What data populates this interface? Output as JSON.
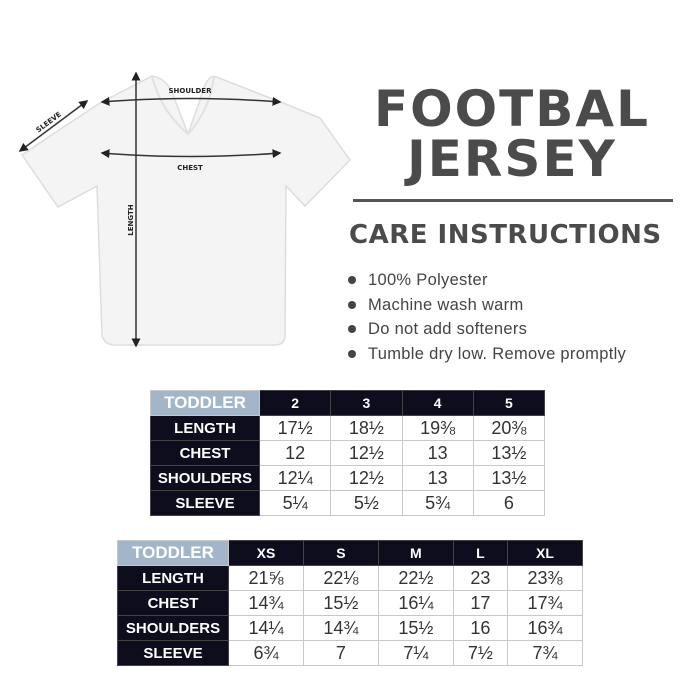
{
  "diagram": {
    "labels": {
      "shoulder": "SHOULDER",
      "chest": "CHEST",
      "sleeve": "SLEEVE",
      "length": "LENGTH"
    }
  },
  "title": {
    "line1": "FOOTBAL",
    "line2": "JERSEY"
  },
  "care": {
    "heading": "CARE INSTRUCTIONS",
    "items": [
      "100% Polyester",
      "Machine wash warm",
      "Do not add softeners",
      "Tumble dry low. Remove promptly"
    ]
  },
  "tables": [
    {
      "corner": "TODDLER",
      "sizes": [
        "2",
        "3",
        "4",
        "5"
      ],
      "rows": [
        {
          "label": "LENGTH",
          "values": [
            "17½",
            "18½",
            "19⅜",
            "20⅜"
          ]
        },
        {
          "label": "CHEST",
          "values": [
            "12",
            "12½",
            "13",
            "13½"
          ]
        },
        {
          "label": "SHOULDERS",
          "values": [
            "12¼",
            "12½",
            "13",
            "13½"
          ]
        },
        {
          "label": "SLEEVE",
          "values": [
            "5¼",
            "5½",
            "5¾",
            "6"
          ]
        }
      ]
    },
    {
      "corner": "TODDLER",
      "sizes": [
        "XS",
        "S",
        "M",
        "L",
        "XL"
      ],
      "rows": [
        {
          "label": "LENGTH",
          "values": [
            "21⅝",
            "22⅛",
            "22½",
            "23",
            "23⅜"
          ]
        },
        {
          "label": "CHEST",
          "values": [
            "14¾",
            "15½",
            "16¼",
            "17",
            "17¾"
          ]
        },
        {
          "label": "SHOULDERS",
          "values": [
            "14¼",
            "14¾",
            "15½",
            "16",
            "16¾"
          ]
        },
        {
          "label": "SLEEVE",
          "values": [
            "6¾",
            "7",
            "7¼",
            "7½",
            "7¾"
          ]
        }
      ]
    }
  ],
  "colors": {
    "header_dark": "#0d0d1e",
    "corner": "#a3b5c9",
    "title": "#4b4b4b"
  }
}
